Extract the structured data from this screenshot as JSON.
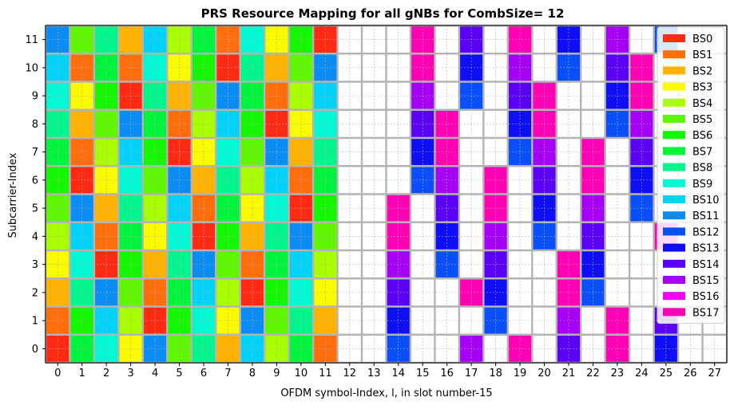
{
  "chart_data": {
    "type": "heatmap",
    "title": "PRS Resource Mapping for all gNBs for CombSize= 12",
    "xlabel": "OFDM symbol-Index, l, in slot number-15",
    "ylabel": "Subcarrier-Index",
    "x_ticks": [
      "0",
      "1",
      "2",
      "3",
      "4",
      "5",
      "6",
      "7",
      "8",
      "9",
      "10",
      "11",
      "12",
      "13",
      "14",
      "15",
      "16",
      "17",
      "18",
      "19",
      "20",
      "21",
      "22",
      "23",
      "24",
      "25",
      "26",
      "27"
    ],
    "y_ticks": [
      "0",
      "1",
      "2",
      "3",
      "4",
      "5",
      "6",
      "7",
      "8",
      "9",
      "10",
      "11"
    ],
    "xlim": [
      -0.5,
      27.5
    ],
    "ylim": [
      -0.5,
      11.5
    ],
    "grid": "on",
    "legend_position": "right",
    "series": [
      {
        "name": "BS0",
        "color": "#ff2a14"
      },
      {
        "name": "BS1",
        "color": "#ff6e0a"
      },
      {
        "name": "BS2",
        "color": "#ffb300"
      },
      {
        "name": "BS3",
        "color": "#fbfb00"
      },
      {
        "name": "BS4",
        "color": "#a9ff00"
      },
      {
        "name": "BS5",
        "color": "#5ef700"
      },
      {
        "name": "BS6",
        "color": "#14f700"
      },
      {
        "name": "BS7",
        "color": "#00f43c"
      },
      {
        "name": "BS8",
        "color": "#00f58c"
      },
      {
        "name": "BS9",
        "color": "#00f8d2"
      },
      {
        "name": "BS10",
        "color": "#00d2f8"
      },
      {
        "name": "BS11",
        "color": "#0a8cf5"
      },
      {
        "name": "BS12",
        "color": "#0a50fa"
      },
      {
        "name": "BS13",
        "color": "#0f0ff5"
      },
      {
        "name": "BS14",
        "color": "#5a00f5"
      },
      {
        "name": "BS15",
        "color": "#a500f5"
      },
      {
        "name": "BS16",
        "color": "#f000f5"
      },
      {
        "name": "BS17",
        "color": "#ff00b4"
      }
    ],
    "grid_values": [
      [
        0,
        7,
        9,
        3,
        11,
        5,
        8,
        2,
        10,
        4,
        7,
        1,
        null,
        null,
        12,
        null,
        null,
        15,
        null,
        17,
        null,
        14,
        null,
        17,
        null,
        13,
        null,
        null
      ],
      [
        1,
        6,
        10,
        4,
        0,
        6,
        9,
        3,
        11,
        5,
        8,
        2,
        null,
        null,
        13,
        null,
        null,
        null,
        12,
        null,
        null,
        15,
        null,
        17,
        null,
        14,
        null,
        null
      ],
      [
        2,
        8,
        11,
        5,
        1,
        7,
        10,
        4,
        0,
        6,
        9,
        3,
        null,
        null,
        14,
        null,
        null,
        17,
        13,
        null,
        null,
        17,
        12,
        null,
        null,
        null,
        null,
        null
      ],
      [
        3,
        9,
        0,
        6,
        2,
        8,
        11,
        5,
        1,
        7,
        10,
        4,
        null,
        null,
        15,
        null,
        12,
        null,
        14,
        null,
        null,
        17,
        13,
        null,
        null,
        null,
        null,
        null
      ],
      [
        4,
        10,
        1,
        7,
        3,
        9,
        0,
        6,
        2,
        8,
        11,
        5,
        null,
        null,
        17,
        null,
        13,
        null,
        15,
        null,
        12,
        null,
        14,
        null,
        null,
        17,
        null,
        null
      ],
      [
        5,
        11,
        2,
        8,
        4,
        10,
        1,
        7,
        3,
        9,
        0,
        6,
        null,
        null,
        17,
        null,
        14,
        null,
        17,
        null,
        13,
        null,
        15,
        null,
        12,
        null,
        null,
        null
      ],
      [
        6,
        0,
        3,
        9,
        5,
        11,
        2,
        8,
        4,
        10,
        1,
        7,
        null,
        null,
        null,
        12,
        15,
        null,
        17,
        null,
        14,
        null,
        17,
        null,
        13,
        null,
        null,
        null
      ],
      [
        7,
        1,
        4,
        10,
        6,
        0,
        3,
        9,
        5,
        11,
        2,
        8,
        null,
        null,
        null,
        13,
        17,
        null,
        null,
        12,
        15,
        null,
        17,
        null,
        14,
        null,
        null,
        null
      ],
      [
        8,
        2,
        5,
        11,
        7,
        1,
        4,
        10,
        6,
        0,
        3,
        9,
        null,
        null,
        null,
        14,
        17,
        null,
        null,
        13,
        17,
        null,
        null,
        12,
        15,
        null,
        null,
        null
      ],
      [
        9,
        3,
        6,
        0,
        8,
        2,
        5,
        11,
        7,
        1,
        4,
        10,
        null,
        null,
        null,
        15,
        null,
        12,
        null,
        14,
        17,
        null,
        null,
        13,
        17,
        null,
        null,
        null
      ],
      [
        10,
        1,
        7,
        1,
        9,
        3,
        6,
        0,
        8,
        2,
        5,
        11,
        null,
        null,
        null,
        17,
        null,
        13,
        null,
        15,
        null,
        12,
        null,
        14,
        17,
        null,
        null,
        null
      ],
      [
        11,
        5,
        8,
        2,
        10,
        4,
        7,
        1,
        9,
        3,
        6,
        0,
        null,
        null,
        null,
        17,
        null,
        14,
        null,
        17,
        null,
        13,
        null,
        15,
        null,
        12,
        null,
        null
      ]
    ]
  }
}
